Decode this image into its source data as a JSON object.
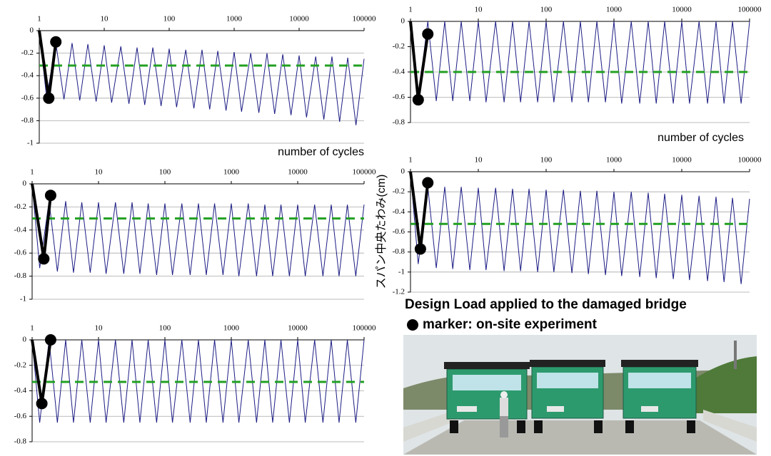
{
  "chart_data": [
    {
      "type": "line",
      "log_x": true,
      "grid": true,
      "xlim": [
        1,
        100000
      ],
      "xticks": [
        1,
        10,
        100,
        1000,
        10000,
        100000
      ],
      "ylim": [
        -1,
        0
      ],
      "yticks": [
        0,
        -0.2,
        -0.4,
        -0.6,
        -0.8,
        -1
      ],
      "xlabel": "number of cycles",
      "series": [
        {
          "color": "#1c1c84",
          "x": [
            1,
            1.3,
            1.8,
            2.4,
            3.2,
            4.2,
            5.6,
            7.5,
            10,
            13,
            18,
            24,
            32,
            42,
            56,
            75,
            100,
            130,
            180,
            240,
            320,
            420,
            560,
            750,
            1000,
            1300,
            1800,
            2400,
            3200,
            4200,
            5600,
            7500,
            10000,
            13000,
            18000,
            24000,
            32000,
            42000,
            56000,
            75000,
            100000
          ],
          "values": [
            0,
            -0.6,
            -0.11,
            -0.61,
            -0.11,
            -0.62,
            -0.12,
            -0.63,
            -0.13,
            -0.64,
            -0.14,
            -0.65,
            -0.15,
            -0.66,
            -0.15,
            -0.67,
            -0.16,
            -0.68,
            -0.17,
            -0.69,
            -0.17,
            -0.7,
            -0.18,
            -0.71,
            -0.19,
            -0.72,
            -0.2,
            -0.73,
            -0.2,
            -0.74,
            -0.21,
            -0.75,
            -0.22,
            -0.77,
            -0.23,
            -0.79,
            -0.23,
            -0.81,
            -0.24,
            -0.84,
            -0.25
          ]
        },
        {
          "color": "#22a022",
          "style": "dashed",
          "x": [
            1,
            100000
          ],
          "values": [
            -0.31,
            -0.31
          ]
        },
        {
          "color": "#000000",
          "style": "markers",
          "x": [
            1,
            1.4,
            1.8
          ],
          "values": [
            0,
            -0.6,
            -0.1
          ]
        }
      ]
    },
    {
      "type": "line",
      "log_x": true,
      "grid": true,
      "xlim": [
        1,
        100000
      ],
      "xticks": [
        1,
        10,
        100,
        1000,
        10000,
        100000
      ],
      "ylim": [
        -0.8,
        0
      ],
      "yticks": [
        0,
        -0.2,
        -0.4,
        -0.6,
        -0.8
      ],
      "xlabel": "number of cycles",
      "series": [
        {
          "color": "#1c1c84",
          "x": [
            1,
            1.3,
            1.8,
            2.4,
            3.2,
            4.2,
            5.6,
            7.5,
            10,
            13,
            18,
            24,
            32,
            42,
            56,
            75,
            100,
            130,
            180,
            240,
            320,
            420,
            560,
            750,
            1000,
            1300,
            1800,
            2400,
            3200,
            4200,
            5600,
            7500,
            10000,
            13000,
            18000,
            24000,
            32000,
            42000,
            56000,
            75000,
            100000
          ],
          "values": [
            0,
            -0.62,
            0,
            -0.63,
            0,
            -0.63,
            0,
            -0.63,
            0,
            -0.64,
            0,
            -0.64,
            0,
            -0.64,
            0,
            -0.64,
            0,
            -0.64,
            0,
            -0.64,
            0,
            -0.64,
            0,
            -0.64,
            0,
            -0.65,
            0,
            -0.65,
            0,
            -0.65,
            0,
            -0.65,
            0,
            -0.65,
            0,
            -0.65,
            0,
            -0.65,
            0,
            -0.65,
            0
          ]
        },
        {
          "color": "#22a022",
          "style": "dashed",
          "x": [
            1,
            100000
          ],
          "values": [
            -0.4,
            -0.4
          ]
        },
        {
          "color": "#000000",
          "style": "markers",
          "x": [
            1,
            1.3,
            1.8
          ],
          "values": [
            0,
            -0.62,
            -0.1
          ]
        }
      ]
    },
    {
      "type": "line",
      "log_x": true,
      "grid": true,
      "xlim": [
        1,
        100000
      ],
      "xticks": [
        1,
        10,
        100,
        1000,
        10000,
        100000
      ],
      "ylim": [
        -1,
        0
      ],
      "yticks": [
        0,
        -0.2,
        -0.4,
        -0.6,
        -0.8,
        -1
      ],
      "series": [
        {
          "color": "#1c1c84",
          "x": [
            1,
            1.3,
            1.8,
            2.4,
            3.2,
            4.2,
            5.6,
            7.5,
            10,
            13,
            18,
            24,
            32,
            42,
            56,
            75,
            100,
            130,
            180,
            240,
            320,
            420,
            560,
            750,
            1000,
            1300,
            1800,
            2400,
            3200,
            4200,
            5600,
            7500,
            10000,
            13000,
            18000,
            24000,
            32000,
            42000,
            56000,
            75000,
            100000
          ],
          "values": [
            0,
            -0.73,
            -0.15,
            -0.76,
            -0.15,
            -0.77,
            -0.16,
            -0.77,
            -0.16,
            -0.78,
            -0.16,
            -0.78,
            -0.16,
            -0.78,
            -0.17,
            -0.79,
            -0.17,
            -0.79,
            -0.17,
            -0.79,
            -0.17,
            -0.79,
            -0.17,
            -0.79,
            -0.17,
            -0.8,
            -0.17,
            -0.8,
            -0.18,
            -0.8,
            -0.18,
            -0.8,
            -0.18,
            -0.8,
            -0.18,
            -0.8,
            -0.18,
            -0.8,
            -0.18,
            -0.8,
            -0.18
          ]
        },
        {
          "color": "#22a022",
          "style": "dashed",
          "x": [
            1,
            100000
          ],
          "values": [
            -0.3,
            -0.3
          ]
        },
        {
          "color": "#000000",
          "style": "markers",
          "x": [
            1,
            1.5,
            1.9
          ],
          "values": [
            0,
            -0.65,
            -0.1
          ]
        }
      ]
    },
    {
      "type": "line",
      "log_x": true,
      "grid": true,
      "xlim": [
        1,
        100000
      ],
      "xticks": [
        1,
        10,
        100,
        1000,
        10000,
        100000
      ],
      "ylim": [
        -1.2,
        0
      ],
      "yticks": [
        0,
        -0.2,
        -0.4,
        -0.6,
        -0.8,
        -1,
        -1.2
      ],
      "ylabel": "スパン中央たわみ(cm)",
      "series": [
        {
          "color": "#1c1c84",
          "x": [
            1,
            1.3,
            1.8,
            2.4,
            3.2,
            4.2,
            5.6,
            7.5,
            10,
            13,
            18,
            24,
            32,
            42,
            56,
            75,
            100,
            130,
            180,
            240,
            320,
            420,
            560,
            750,
            1000,
            1300,
            1800,
            2400,
            3200,
            4200,
            5600,
            7500,
            10000,
            13000,
            18000,
            24000,
            32000,
            42000,
            56000,
            75000,
            100000
          ],
          "values": [
            0,
            -0.92,
            -0.15,
            -0.96,
            -0.15,
            -0.97,
            -0.15,
            -0.98,
            -0.16,
            -0.98,
            -0.16,
            -0.99,
            -0.17,
            -0.99,
            -0.17,
            -1,
            -0.18,
            -1,
            -0.18,
            -1.01,
            -0.19,
            -1.02,
            -0.19,
            -1.03,
            -0.2,
            -1.04,
            -0.2,
            -1.05,
            -0.21,
            -1.06,
            -0.22,
            -1.07,
            -0.23,
            -1.08,
            -0.24,
            -1.09,
            -0.25,
            -1.1,
            -0.26,
            -1.12,
            -0.27
          ]
        },
        {
          "color": "#22a022",
          "style": "dashed",
          "x": [
            1,
            100000
          ],
          "values": [
            -0.52,
            -0.52
          ]
        },
        {
          "color": "#000000",
          "style": "markers",
          "x": [
            1,
            1.4,
            1.8
          ],
          "values": [
            0,
            -0.77,
            -0.11
          ]
        }
      ]
    },
    {
      "type": "line",
      "log_x": true,
      "grid": true,
      "xlim": [
        1,
        100000
      ],
      "xticks": [
        1,
        10,
        100,
        1000,
        10000,
        100000
      ],
      "ylim": [
        -0.8,
        0
      ],
      "yticks": [
        0,
        -0.2,
        -0.4,
        -0.6,
        -0.8
      ],
      "series": [
        {
          "color": "#1c1c84",
          "x": [
            1,
            1.3,
            1.8,
            2.4,
            3.2,
            4.2,
            5.6,
            7.5,
            10,
            13,
            18,
            24,
            32,
            42,
            56,
            75,
            100,
            130,
            180,
            240,
            320,
            420,
            560,
            750,
            1000,
            1300,
            1800,
            2400,
            3200,
            4200,
            5600,
            7500,
            10000,
            13000,
            18000,
            24000,
            32000,
            42000,
            56000,
            75000,
            100000
          ],
          "values": [
            0,
            -0.65,
            0,
            -0.65,
            0,
            -0.65,
            0,
            -0.65,
            0,
            -0.65,
            0,
            -0.65,
            0,
            -0.65,
            0,
            -0.65,
            0,
            -0.65,
            0,
            -0.65,
            0,
            -0.65,
            0,
            -0.65,
            0,
            -0.65,
            0,
            -0.65,
            0,
            -0.65,
            0,
            -0.65,
            0,
            -0.65,
            0,
            -0.65,
            0,
            -0.65,
            0,
            -0.65,
            0
          ]
        },
        {
          "color": "#22a022",
          "style": "dashed",
          "x": [
            1,
            100000
          ],
          "values": [
            -0.33,
            -0.33
          ]
        },
        {
          "color": "#000000",
          "style": "markers",
          "x": [
            1,
            1.4,
            1.9
          ],
          "values": [
            0,
            -0.5,
            0
          ]
        }
      ]
    }
  ],
  "caption": {
    "title": "Design Load applied to the damaged bridge",
    "legend": "marker: on-site experiment"
  }
}
